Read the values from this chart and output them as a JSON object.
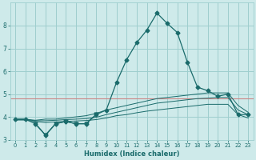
{
  "xlabel": "Humidex (Indice chaleur)",
  "bg_color": "#ceeaea",
  "grid_color": "#9ecece",
  "line_color": "#1a6b6b",
  "red_line_color": "#cc8888",
  "x_values": [
    0,
    1,
    2,
    3,
    4,
    5,
    6,
    7,
    8,
    9,
    10,
    11,
    12,
    13,
    14,
    15,
    16,
    17,
    18,
    19,
    20,
    21,
    22,
    23
  ],
  "main_y": [
    3.9,
    3.9,
    3.7,
    3.2,
    3.7,
    3.8,
    3.7,
    3.7,
    4.1,
    4.3,
    5.5,
    6.5,
    7.25,
    7.8,
    8.55,
    8.1,
    7.7,
    6.4,
    5.3,
    5.15,
    4.9,
    5.0,
    4.1,
    4.1
  ],
  "upper1_y": [
    3.9,
    3.9,
    3.85,
    3.9,
    3.9,
    3.95,
    4.0,
    4.05,
    4.15,
    4.3,
    4.4,
    4.5,
    4.6,
    4.7,
    4.8,
    4.85,
    4.9,
    4.95,
    5.0,
    5.05,
    5.05,
    5.05,
    4.5,
    4.2
  ],
  "upper2_y": [
    3.88,
    3.88,
    3.83,
    3.83,
    3.85,
    3.88,
    3.9,
    3.92,
    3.98,
    4.1,
    4.2,
    4.3,
    4.4,
    4.5,
    4.6,
    4.65,
    4.7,
    4.75,
    4.8,
    4.82,
    4.85,
    4.85,
    4.3,
    4.1
  ],
  "lower_y": [
    3.86,
    3.86,
    3.8,
    3.75,
    3.78,
    3.8,
    3.82,
    3.84,
    3.88,
    3.95,
    4.05,
    4.1,
    4.18,
    4.25,
    4.3,
    4.35,
    4.4,
    4.45,
    4.5,
    4.55,
    4.55,
    4.55,
    4.1,
    3.95
  ],
  "red_y": 4.8,
  "ylim": [
    3.0,
    9.0
  ],
  "yticks": [
    3,
    4,
    5,
    6,
    7,
    8
  ],
  "xticks": [
    0,
    1,
    2,
    3,
    4,
    5,
    6,
    7,
    8,
    9,
    10,
    11,
    12,
    13,
    14,
    15,
    16,
    17,
    18,
    19,
    20,
    21,
    22,
    23
  ],
  "marker_main": "D",
  "marker_zigzag": "v",
  "zigzag_x": [
    2,
    3,
    4,
    5,
    6,
    7,
    8
  ],
  "zigzag_y": [
    3.7,
    3.2,
    3.7,
    3.8,
    3.7,
    3.7,
    4.1
  ]
}
